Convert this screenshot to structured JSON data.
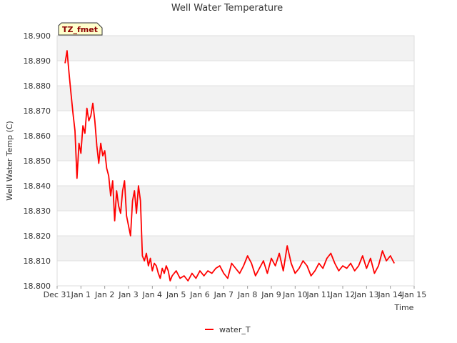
{
  "chart_data": {
    "type": "line",
    "title": "Well Water Temperature",
    "xlabel": "Time",
    "ylabel": "Well Water Temp (C)",
    "badge": "TZ_fmet",
    "x_tick_labels": [
      "Dec 31",
      "Jan 1",
      "Jan 2",
      "Jan 3",
      "Jan 4",
      "Jan 5",
      "Jan 6",
      "Jan 7",
      "Jan 8",
      "Jan 9",
      "Jan 10",
      "Jan 11",
      "Jan 12",
      "Jan 13",
      "Jan 14",
      "Jan 15"
    ],
    "y_tick_labels": [
      "18.800",
      "18.810",
      "18.820",
      "18.830",
      "18.840",
      "18.850",
      "18.860",
      "18.870",
      "18.880",
      "18.890",
      "18.900"
    ],
    "xlim": [
      "Dec 31",
      "Jan 15"
    ],
    "ylim": [
      18.8,
      18.9
    ],
    "grid": true,
    "background_bands": "alternating light grey",
    "legend_position": "bottom-center",
    "series": [
      {
        "name": "water_T",
        "color": "#ff0000",
        "x": [
          "Dec 31 08:00",
          "Dec 31 10:00",
          "Dec 31 12:00",
          "Dec 31 14:00",
          "Dec 31 16:00",
          "Dec 31 18:00",
          "Dec 31 20:00",
          "Dec 31 22:00",
          "Jan 1 00:00",
          "Jan 1 02:00",
          "Jan 1 04:00",
          "Jan 1 06:00",
          "Jan 1 08:00",
          "Jan 1 10:00",
          "Jan 1 12:00",
          "Jan 1 14:00",
          "Jan 1 16:00",
          "Jan 1 18:00",
          "Jan 1 20:00",
          "Jan 1 22:00",
          "Jan 2 00:00",
          "Jan 2 02:00",
          "Jan 2 04:00",
          "Jan 2 06:00",
          "Jan 2 08:00",
          "Jan 2 10:00",
          "Jan 2 12:00",
          "Jan 2 14:00",
          "Jan 2 16:00",
          "Jan 2 18:00",
          "Jan 2 20:00",
          "Jan 2 22:00",
          "Jan 3 00:00",
          "Jan 3 02:00",
          "Jan 3 04:00",
          "Jan 3 06:00",
          "Jan 3 08:00",
          "Jan 3 10:00",
          "Jan 3 12:00",
          "Jan 3 14:00",
          "Jan 3 16:00",
          "Jan 3 18:00",
          "Jan 3 20:00",
          "Jan 3 22:00",
          "Jan 4 00:00",
          "Jan 4 02:00",
          "Jan 4 04:00",
          "Jan 4 06:00",
          "Jan 4 08:00",
          "Jan 4 10:00",
          "Jan 4 12:00",
          "Jan 4 14:00",
          "Jan 4 16:00",
          "Jan 4 18:00",
          "Jan 4 20:00",
          "Jan 4 22:00",
          "Jan 5 00:00",
          "Jan 5 04:00",
          "Jan 5 08:00",
          "Jan 5 12:00",
          "Jan 5 16:00",
          "Jan 5 20:00",
          "Jan 6 00:00",
          "Jan 6 04:00",
          "Jan 6 08:00",
          "Jan 6 12:00",
          "Jan 6 16:00",
          "Jan 6 20:00",
          "Jan 7 00:00",
          "Jan 7 04:00",
          "Jan 7 08:00",
          "Jan 7 12:00",
          "Jan 7 16:00",
          "Jan 7 20:00",
          "Jan 8 00:00",
          "Jan 8 04:00",
          "Jan 8 08:00",
          "Jan 8 12:00",
          "Jan 8 16:00",
          "Jan 8 20:00",
          "Jan 9 00:00",
          "Jan 9 04:00",
          "Jan 9 08:00",
          "Jan 9 12:00",
          "Jan 9 16:00",
          "Jan 9 20:00",
          "Jan 10 00:00",
          "Jan 10 04:00",
          "Jan 10 08:00",
          "Jan 10 12:00",
          "Jan 10 16:00",
          "Jan 10 20:00",
          "Jan 11 00:00",
          "Jan 11 04:00",
          "Jan 11 08:00",
          "Jan 11 12:00",
          "Jan 11 16:00",
          "Jan 11 20:00",
          "Jan 12 00:00",
          "Jan 12 04:00",
          "Jan 12 08:00",
          "Jan 12 12:00",
          "Jan 12 16:00",
          "Jan 12 20:00",
          "Jan 13 00:00",
          "Jan 13 04:00",
          "Jan 13 08:00",
          "Jan 13 12:00",
          "Jan 13 16:00",
          "Jan 13 20:00",
          "Jan 14 00:00",
          "Jan 14 04:00"
        ],
        "values": [
          18.889,
          18.894,
          18.885,
          18.877,
          18.869,
          18.862,
          18.843,
          18.857,
          18.853,
          18.864,
          18.861,
          18.871,
          18.866,
          18.868,
          18.873,
          18.866,
          18.856,
          18.849,
          18.857,
          18.852,
          18.854,
          18.847,
          18.844,
          18.836,
          18.842,
          18.826,
          18.838,
          18.832,
          18.829,
          18.838,
          18.842,
          18.828,
          18.824,
          18.82,
          18.834,
          18.838,
          18.829,
          18.84,
          18.834,
          18.812,
          18.81,
          18.813,
          18.808,
          18.811,
          18.806,
          18.809,
          18.808,
          18.805,
          18.803,
          18.807,
          18.805,
          18.808,
          18.806,
          18.802,
          18.804,
          18.805,
          18.806,
          18.803,
          18.804,
          18.802,
          18.805,
          18.803,
          18.806,
          18.804,
          18.806,
          18.805,
          18.807,
          18.808,
          18.805,
          18.803,
          18.809,
          18.807,
          18.805,
          18.808,
          18.812,
          18.809,
          18.804,
          18.807,
          18.81,
          18.805,
          18.811,
          18.808,
          18.813,
          18.806,
          18.816,
          18.809,
          18.805,
          18.807,
          18.81,
          18.808,
          18.804,
          18.806,
          18.809,
          18.807,
          18.811,
          18.813,
          18.809,
          18.806,
          18.808,
          18.807,
          18.809,
          18.806,
          18.808,
          18.812,
          18.807,
          18.811,
          18.805,
          18.808,
          18.814,
          18.81,
          18.812,
          18.809
        ]
      }
    ]
  }
}
